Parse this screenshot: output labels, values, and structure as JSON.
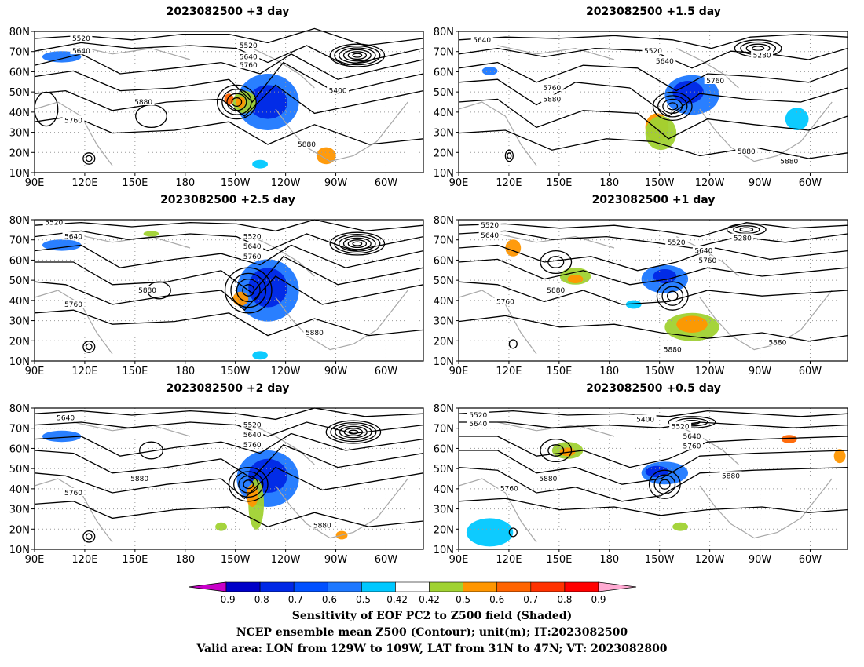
{
  "panels": [
    {
      "title": "2023082500 +3 day"
    },
    {
      "title": "2023082500 +1.5 day"
    },
    {
      "title": "2023082500 +2.5 day"
    },
    {
      "title": "2023082500 +1 day"
    },
    {
      "title": "2023082500 +2 day"
    },
    {
      "title": "2023082500 +0.5 day"
    }
  ],
  "lat_ticks": [
    "80N",
    "70N",
    "60N",
    "50N",
    "40N",
    "30N",
    "20N",
    "10N"
  ],
  "lon_ticks": [
    "90E",
    "120E",
    "150E",
    "180",
    "150W",
    "120W",
    "90W",
    "60W"
  ],
  "contour_labels": {
    "p0": [
      "5520",
      "5640",
      "5520",
      "5640",
      "5760",
      "5400",
      "5880",
      "5760",
      "5880"
    ],
    "p1": [
      "5640",
      "5520",
      "5640",
      "5280",
      "5760",
      "5760",
      "5880",
      "5880",
      "5880"
    ],
    "p2": [
      "5520",
      "5640",
      "5520",
      "5640",
      "5760",
      "5880",
      "5760",
      "5880"
    ],
    "p3": [
      "5520",
      "5640",
      "5520",
      "5280",
      "5640",
      "5760",
      "5760",
      "5880",
      "5880",
      "5880"
    ],
    "p4": [
      "5640",
      "5520",
      "5640",
      "5760",
      "5880",
      "5760",
      "5880"
    ],
    "p5": [
      "5520",
      "5640",
      "5400",
      "5520",
      "5640",
      "5760",
      "5880",
      "5760",
      "5880"
    ]
  },
  "colorbar": {
    "labels": [
      "-0.9",
      "-0.8",
      "-0.7",
      "-0.6",
      "-0.5",
      "-0.42",
      "0.42",
      "0.5",
      "0.6",
      "0.7",
      "0.8",
      "0.9"
    ],
    "colors": [
      "#0000c8",
      "#0028e6",
      "#0050ff",
      "#1e78ff",
      "#00c8ff",
      "#ffffff",
      "#a0d232",
      "#ff9600",
      "#ff6400",
      "#ff3200",
      "#ff0000"
    ],
    "low_end": "#c800c8",
    "high_end": "#ffaad2"
  },
  "footer": {
    "line1": "Sensitivity of EOF PC2 to Z500 field (Shaded)",
    "line2": "NCEP ensemble mean Z500 (Contour); unit(m); IT:2023082500",
    "line3": "Valid area: LON from 129W to 109W, LAT from 31N to 47N; VT: 2023082800"
  }
}
